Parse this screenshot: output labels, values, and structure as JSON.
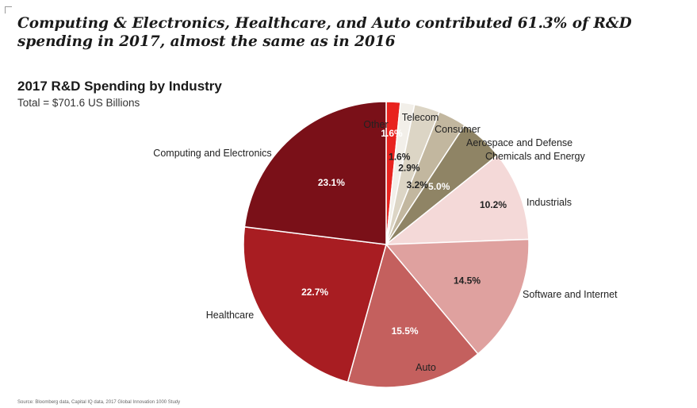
{
  "header": {
    "headline": "Computing & Electronics, Healthcare, and Auto contributed 61.3% of R&D spending in 2017, almost the same as in 2016"
  },
  "chart_data": {
    "type": "pie",
    "title": "2017 R&D Spending by Industry",
    "subtitle": "Total = $701.6 US Billions",
    "slices": [
      {
        "label": "Other",
        "value": 1.6,
        "value_label": "1.6%",
        "color": "#e8231f",
        "value_color": "#ffffff"
      },
      {
        "label": "Telecom",
        "value": 1.6,
        "value_label": "1.6%",
        "color": "#f2efe9",
        "value_color": "#222222"
      },
      {
        "label": "Consumer",
        "value": 2.9,
        "value_label": "2.9%",
        "color": "#dcd5c5",
        "value_color": "#222222"
      },
      {
        "label": "Aerospace and Defense",
        "value": 3.2,
        "value_label": "3.2%",
        "color": "#c2b79f",
        "value_color": "#222222"
      },
      {
        "label": "Chemicals and Energy",
        "value": 5.0,
        "value_label": "5.0%",
        "color": "#8f8465",
        "value_color": "#ffffff"
      },
      {
        "label": "Industrials",
        "value": 10.2,
        "value_label": "10.2%",
        "color": "#f4d9d8",
        "value_color": "#222222"
      },
      {
        "label": "Software and Internet",
        "value": 14.5,
        "value_label": "14.5%",
        "color": "#dfa19f",
        "value_color": "#222222"
      },
      {
        "label": "Auto",
        "value": 15.5,
        "value_label": "15.5%",
        "color": "#c4605e",
        "value_color": "#ffffff"
      },
      {
        "label": "Healthcare",
        "value": 22.7,
        "value_label": "22.7%",
        "color": "#a81d22",
        "value_color": "#ffffff"
      },
      {
        "label": "Computing and Electronics",
        "value": 23.1,
        "value_label": "23.1%",
        "color": "#7a1018",
        "value_color": "#ffffff"
      }
    ]
  },
  "footer": {
    "source": "Source: Bloomberg data, Capital IQ data, 2017 Global Innovation 1000 Study"
  }
}
